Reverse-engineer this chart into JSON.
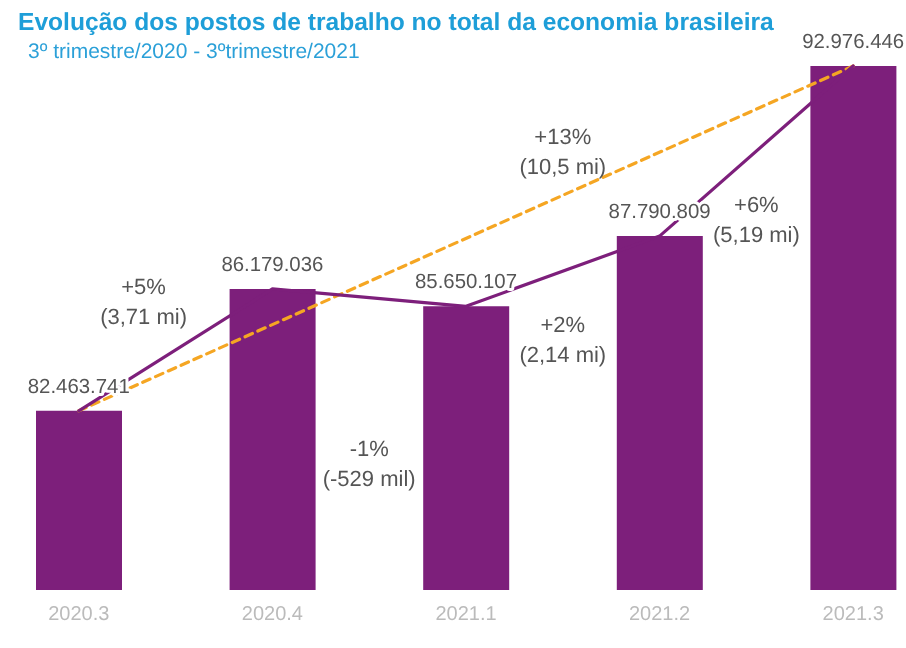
{
  "chart_data": {
    "type": "bar",
    "title": "Evolução dos postos de trabalho no total da economia brasileira",
    "subtitle": "3º trimestre/2020 - 3ºtrimestre/2021",
    "categories": [
      "2020.3",
      "2020.4",
      "2021.1",
      "2021.2",
      "2021.3"
    ],
    "ylim": [
      77000000,
      92976446
    ],
    "tick_labels": "x",
    "series": [
      {
        "color": "#7d1f7b",
        "values": [
          82463741,
          86179036,
          85650107,
          87790809,
          92976446
        ],
        "value_labels": [
          "82.463.741",
          "86.179.036",
          "85.650.107",
          "87.790.809",
          "92.976.446"
        ]
      },
      {
        "type": "line",
        "color": "#7d1f7b",
        "values": [
          82463741,
          86179036,
          85650107,
          87790809,
          92976446
        ],
        "marker": "none",
        "line_style": "solid"
      },
      {
        "type": "line",
        "color": "#f5a623",
        "values": [
          82463741,
          null,
          null,
          null,
          92976446
        ],
        "marker": "none",
        "line_style": "dashed"
      }
    ],
    "annotations": [
      "+5%\n(3,71 mi)",
      "-1%\n(-529 mil)",
      "+2%\n(2,14 mi)",
      "+6%\n(5,19 mi)",
      "+13%\n(10,5 mi)"
    ]
  }
}
